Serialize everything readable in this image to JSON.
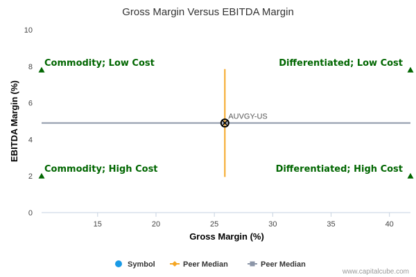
{
  "chart_data": {
    "type": "scatter",
    "title": "Gross Margin Versus EBITDA Margin",
    "xlabel": "Gross Margin (%)",
    "ylabel": "EBITDA Margin (%)",
    "xlim": [
      10.2,
      41.8
    ],
    "ylim": [
      0,
      10
    ],
    "x_ticks": [
      15,
      20,
      25,
      30,
      35,
      40
    ],
    "y_ticks": [
      0,
      2,
      4,
      6,
      8,
      10
    ],
    "grid": false,
    "points": [
      {
        "label": "AUVGY-US",
        "x": 25.9,
        "y": 4.9
      }
    ],
    "peer_median_gross_margin": 25.9,
    "peer_median_gross_margin_y_range": [
      1.95,
      7.85
    ],
    "peer_median_ebitda_margin": 4.9,
    "quadrants": [
      {
        "label": "Commodity; Low Cost",
        "x": 10.2,
        "y": 7.8,
        "corner": "top-left"
      },
      {
        "label": "Differentiated; Low Cost",
        "x": 41.8,
        "y": 7.8,
        "corner": "top-right"
      },
      {
        "label": "Commodity; High Cost",
        "x": 10.2,
        "y": 2.0,
        "corner": "bottom-left"
      },
      {
        "label": "Differentiated; High Cost",
        "x": 41.8,
        "y": 2.0,
        "corner": "bottom-right"
      }
    ],
    "legend": {
      "placement": "bottom",
      "items": [
        {
          "label": "Symbol",
          "marker": "circle",
          "color": "#1a9ae6"
        },
        {
          "label": "Peer Median",
          "marker": "line-diamond",
          "color": "#f5a623"
        },
        {
          "label": "Peer Median",
          "marker": "line-square",
          "color": "#8c96a8"
        }
      ]
    },
    "colors": {
      "vertical_median": "#f5a623",
      "horizontal_median": "#8c96a8",
      "quadrant_text": "#006600",
      "quadrant_marker": "#006600",
      "point_stroke": "#000000"
    }
  },
  "credit": "www.capitalcube.com"
}
